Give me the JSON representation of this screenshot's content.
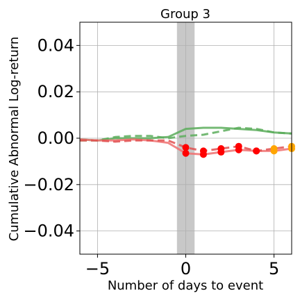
{
  "chart_data": {
    "type": "line",
    "title": "Group 3",
    "xlabel": "Number of days to event",
    "ylabel": "Cumulative Abnormal Log-return",
    "xlim": [
      -6,
      6
    ],
    "ylim": [
      -0.05,
      0.05
    ],
    "grid": true,
    "xticks": [
      -5,
      0,
      5
    ],
    "xtick_labels": [
      "−5",
      "0",
      "5"
    ],
    "yticks": [
      -0.04,
      -0.02,
      0.0,
      0.02,
      0.04
    ],
    "ytick_labels": [
      "−0.04",
      "−0.02",
      "0.00",
      "0.02",
      "0.04"
    ],
    "event_band": {
      "x0": -0.5,
      "x1": 0.5,
      "color": "#c8c8c8"
    },
    "series": [
      {
        "color": "#5cad5c",
        "style": "solid",
        "x": [
          -6,
          -5,
          -4,
          -3,
          -2,
          -1,
          0,
          1,
          2,
          3,
          4,
          5,
          6
        ],
        "y": [
          -0.0005,
          -0.001,
          0.0,
          0.0,
          0.0,
          0.0005,
          0.004,
          0.0045,
          0.0045,
          0.004,
          0.0035,
          0.0025,
          0.002
        ]
      },
      {
        "color": "#5cad5c",
        "style": "dashed",
        "x": [
          -6,
          -5,
          -4,
          -3,
          -2,
          -1,
          0,
          1,
          2,
          3,
          4,
          5,
          6
        ],
        "y": [
          -0.001,
          -0.001,
          0.0005,
          0.001,
          0.001,
          0.0,
          0.001,
          0.0015,
          0.003,
          0.0045,
          0.004,
          0.0025,
          0.002
        ]
      },
      {
        "color": "#f07070",
        "style": "solid",
        "x": [
          -6,
          -5,
          -4,
          -3,
          -2,
          -1,
          0,
          1,
          2,
          3,
          4,
          5,
          6
        ],
        "y": [
          -0.0005,
          -0.001,
          -0.001,
          -0.0005,
          -0.001,
          -0.002,
          -0.0065,
          -0.007,
          -0.006,
          -0.005,
          -0.0055,
          -0.0055,
          -0.0045
        ],
        "markers": [
          {
            "x": 0,
            "y": -0.0065,
            "color": "#ff0000"
          },
          {
            "x": 1,
            "y": -0.007,
            "color": "#ff0000"
          },
          {
            "x": 2,
            "y": -0.006,
            "color": "#ff0000"
          },
          {
            "x": 3,
            "y": -0.005,
            "color": "#ff0000"
          },
          {
            "x": 4,
            "y": -0.0055,
            "color": "#ff0000"
          },
          {
            "x": 5,
            "y": -0.0055,
            "color": "#ffa500"
          },
          {
            "x": 6,
            "y": -0.0045,
            "color": "#ffa500"
          }
        ]
      },
      {
        "color": "#e05050",
        "style": "dashed",
        "x": [
          -6,
          -5,
          -4,
          -3,
          -2,
          -1,
          0,
          1,
          2,
          3,
          4,
          5,
          6
        ],
        "y": [
          -0.001,
          -0.001,
          -0.0015,
          -0.001,
          -0.001,
          -0.001,
          -0.004,
          -0.0055,
          -0.0045,
          -0.0035,
          -0.0055,
          -0.0045,
          -0.0035
        ],
        "markers": [
          {
            "x": 0,
            "y": -0.004,
            "color": "#ff0000"
          },
          {
            "x": 1,
            "y": -0.0055,
            "color": "#ff0000"
          },
          {
            "x": 2,
            "y": -0.0045,
            "color": "#ff0000"
          },
          {
            "x": 3,
            "y": -0.0035,
            "color": "#ff0000"
          },
          {
            "x": 4,
            "y": -0.0055,
            "color": "#ff0000"
          },
          {
            "x": 5,
            "y": -0.0045,
            "color": "#ffa500"
          },
          {
            "x": 6,
            "y": -0.0035,
            "color": "#ffa500"
          }
        ]
      }
    ]
  }
}
